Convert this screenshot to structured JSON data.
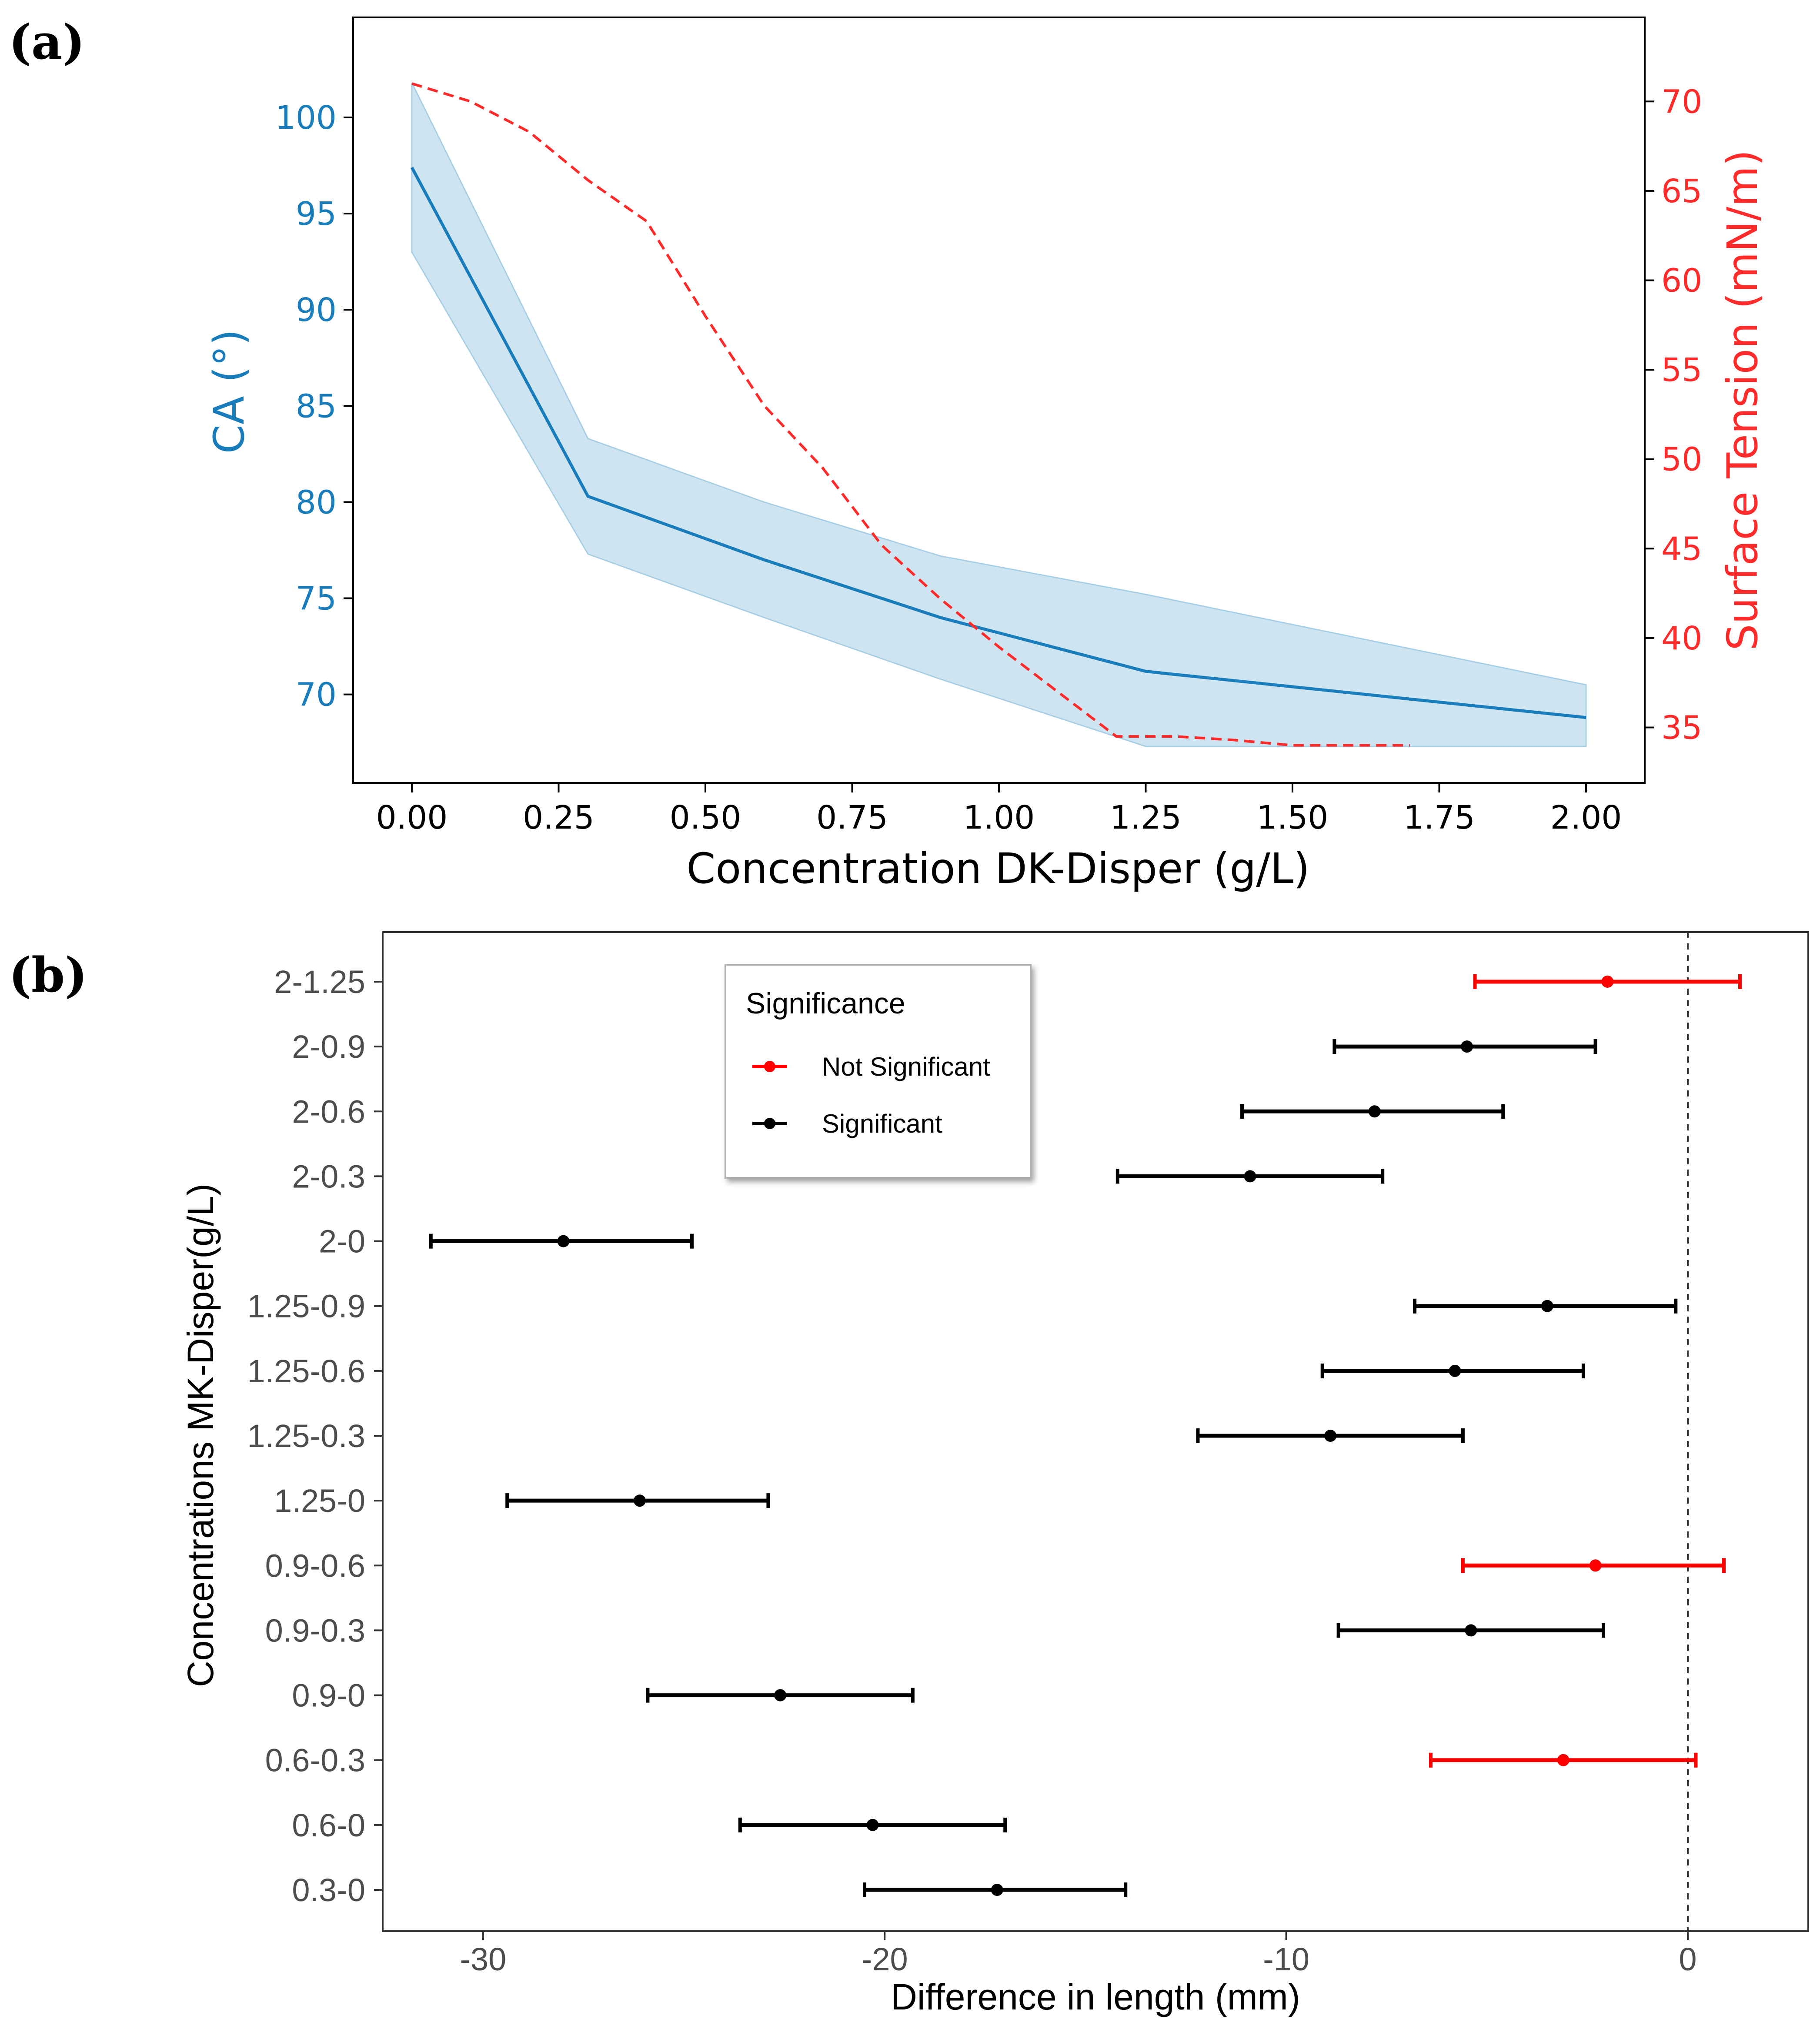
{
  "chart_data": [
    {
      "panel_label": "(a)",
      "type": "line",
      "xlabel": "Concentration DK-Disper (g/L)",
      "ylabel_left": "CA (°)",
      "ylabel_right": "Surface Tension (mN/m)",
      "xlim": [
        -0.1,
        2.1
      ],
      "ylim_left": [
        65.4,
        105.2
      ],
      "ylim_right": [
        31.9,
        74.7
      ],
      "xticks": [
        "0.00",
        "0.25",
        "0.50",
        "0.75",
        "1.00",
        "1.25",
        "1.50",
        "1.75",
        "2.00"
      ],
      "yticks_left": [
        "70",
        "75",
        "80",
        "85",
        "90",
        "95",
        "100"
      ],
      "yticks_right": [
        "35",
        "40",
        "45",
        "50",
        "55",
        "60",
        "65",
        "70"
      ],
      "colors": {
        "ca": "#1a7dbb",
        "band": "#a6cfe6",
        "surface_tension": "#ff2b2b"
      },
      "series": [
        {
          "name": "CA",
          "axis": "left",
          "style": "solid",
          "x": [
            0.0,
            0.3,
            0.6,
            0.9,
            1.25,
            2.0
          ],
          "y": [
            97.4,
            80.3,
            77.0,
            74.0,
            71.2,
            68.8
          ],
          "band_upper": [
            101.8,
            83.3,
            80.0,
            77.2,
            75.2,
            70.5
          ],
          "band_lower": [
            93.0,
            77.3,
            74.0,
            70.8,
            67.3,
            67.3
          ]
        },
        {
          "name": "Surface Tension",
          "axis": "right",
          "style": "dashed",
          "x": [
            0.0,
            0.1,
            0.2,
            0.3,
            0.4,
            0.5,
            0.6,
            0.7,
            0.8,
            0.9,
            1.0,
            1.1,
            1.2,
            1.3,
            1.4,
            1.5,
            1.6,
            1.7
          ],
          "y": [
            71.0,
            70.0,
            68.3,
            65.6,
            63.3,
            58.0,
            53.0,
            49.5,
            45.2,
            42.2,
            39.5,
            37.0,
            34.5,
            34.5,
            34.3,
            34.0,
            34.0,
            34.0
          ]
        }
      ]
    },
    {
      "panel_label": "(b)",
      "type": "errorbar",
      "xlabel": "Difference in length (mm)",
      "ylabel": "Concentrations MK-Disper(g/L)",
      "xlim": [
        -32.5,
        3.0
      ],
      "xticks": [
        -30,
        -20,
        -10,
        0
      ],
      "xtick_labels": [
        "-30",
        "-20",
        "-10",
        "0"
      ],
      "reference_line_x": 0,
      "legend": {
        "title": "Significance",
        "entries": [
          {
            "label": "Not Significant",
            "color": "#ff0000"
          },
          {
            "label": "Significant",
            "color": "#000000"
          }
        ]
      },
      "comparisons": [
        {
          "label": "2-1.25",
          "estimate": -2.0,
          "lower": -5.3,
          "upper": 1.3,
          "significant": false
        },
        {
          "label": "2-0.9",
          "estimate": -5.5,
          "lower": -8.8,
          "upper": -2.3,
          "significant": true
        },
        {
          "label": "2-0.6",
          "estimate": -7.8,
          "lower": -11.1,
          "upper": -4.6,
          "significant": true
        },
        {
          "label": "2-0.3",
          "estimate": -10.9,
          "lower": -14.2,
          "upper": -7.6,
          "significant": true
        },
        {
          "label": "2-0",
          "estimate": -28.0,
          "lower": -31.3,
          "upper": -24.8,
          "significant": true
        },
        {
          "label": "1.25-0.9",
          "estimate": -3.5,
          "lower": -6.8,
          "upper": -0.3,
          "significant": true
        },
        {
          "label": "1.25-0.6",
          "estimate": -5.8,
          "lower": -9.1,
          "upper": -2.6,
          "significant": true
        },
        {
          "label": "1.25-0.3",
          "estimate": -8.9,
          "lower": -12.2,
          "upper": -5.6,
          "significant": true
        },
        {
          "label": "1.25-0",
          "estimate": -26.1,
          "lower": -29.4,
          "upper": -22.9,
          "significant": true
        },
        {
          "label": "0.9-0.6",
          "estimate": -2.3,
          "lower": -5.6,
          "upper": 0.9,
          "significant": false
        },
        {
          "label": "0.9-0.3",
          "estimate": -5.4,
          "lower": -8.7,
          "upper": -2.1,
          "significant": true
        },
        {
          "label": "0.9-0",
          "estimate": -22.6,
          "lower": -25.9,
          "upper": -19.3,
          "significant": true
        },
        {
          "label": "0.6-0.3",
          "estimate": -3.1,
          "lower": -6.4,
          "upper": 0.2,
          "significant": false
        },
        {
          "label": "0.6-0",
          "estimate": -20.3,
          "lower": -23.6,
          "upper": -17.0,
          "significant": true
        },
        {
          "label": "0.3-0",
          "estimate": -17.2,
          "lower": -20.5,
          "upper": -14.0,
          "significant": true
        }
      ]
    }
  ]
}
